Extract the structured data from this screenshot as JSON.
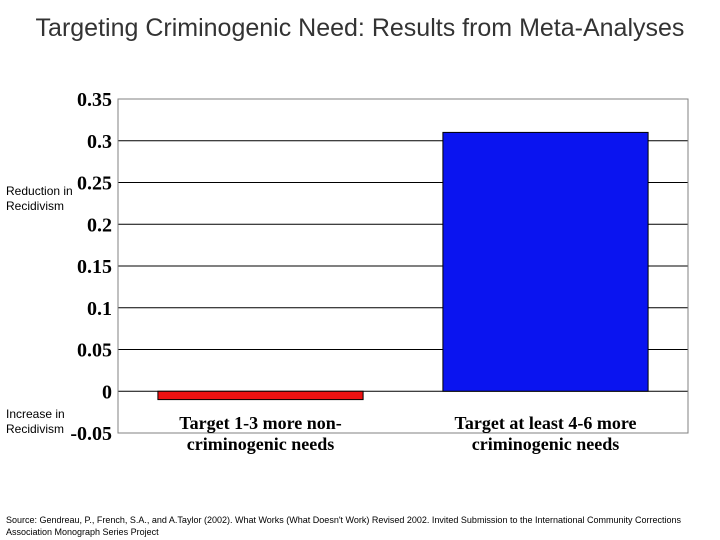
{
  "title": "Targeting Criminogenic Need: Results from Meta-Analyses",
  "reduction_label": "Reduction in Recidivism",
  "increase_label": "Increase in Recidivism",
  "source": "Source: Gendreau, P., French, S.A., and A.Taylor (2002). What Works (What Doesn't Work) Revised 2002. Invited Submission to the International Community Corrections Association Monograph Series Project",
  "chart_data": {
    "type": "bar",
    "title": "Targeting Criminogenic Need: Results from Meta-Analyses",
    "categories": [
      "Target 1-3 more non-criminogenic needs",
      "Target at least 4-6 more criminogenic needs"
    ],
    "category_lines": [
      [
        "Target 1-3 more non-",
        "criminogenic needs"
      ],
      [
        "Target at least 4-6 more",
        "criminogenic needs"
      ]
    ],
    "values": [
      -0.01,
      0.31
    ],
    "bar_colors": [
      "#ee1111",
      "#0a14f0"
    ],
    "ylim": [
      -0.05,
      0.35
    ],
    "yticks": [
      -0.05,
      0,
      0.05,
      0.1,
      0.15,
      0.2,
      0.25,
      0.3,
      0.35
    ],
    "ytick_labels": [
      "-0.05",
      "0",
      "0.05",
      "0.1",
      "0.15",
      "0.2",
      "0.25",
      "0.3",
      "0.35"
    ],
    "grid": true,
    "legend": "none"
  }
}
